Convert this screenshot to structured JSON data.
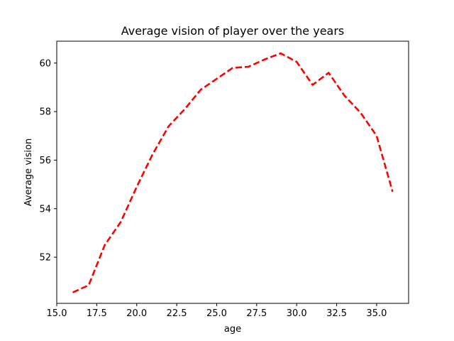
{
  "chart_data": {
    "type": "line",
    "title": "Average vision of player over the years",
    "xlabel": "age",
    "ylabel": "Average vision",
    "xlim": [
      15.0,
      37.0
    ],
    "ylim": [
      50.1,
      60.9
    ],
    "x_ticks": [
      15.0,
      17.5,
      20.0,
      22.5,
      25.0,
      27.5,
      30.0,
      32.5,
      35.0
    ],
    "x_tick_labels": [
      "15.0",
      "17.5",
      "20.0",
      "22.5",
      "25.0",
      "27.5",
      "30.0",
      "32.5",
      "35.0"
    ],
    "y_ticks": [
      52,
      54,
      56,
      58,
      60
    ],
    "y_tick_labels": [
      "52",
      "54",
      "56",
      "58",
      "60"
    ],
    "grid": false,
    "series": [
      {
        "color": "#ff0000",
        "line_style": "dashed",
        "x": [
          16,
          17,
          18,
          19,
          20,
          21,
          22,
          23,
          24,
          25,
          26,
          27,
          28,
          29,
          30,
          31,
          32,
          33,
          34,
          35,
          36
        ],
        "y": [
          50.55,
          50.85,
          52.5,
          53.45,
          54.9,
          56.25,
          57.4,
          58.1,
          58.9,
          59.35,
          59.8,
          59.85,
          60.15,
          60.4,
          60.05,
          59.1,
          59.6,
          58.65,
          57.95,
          57.0,
          54.7
        ]
      }
    ]
  }
}
